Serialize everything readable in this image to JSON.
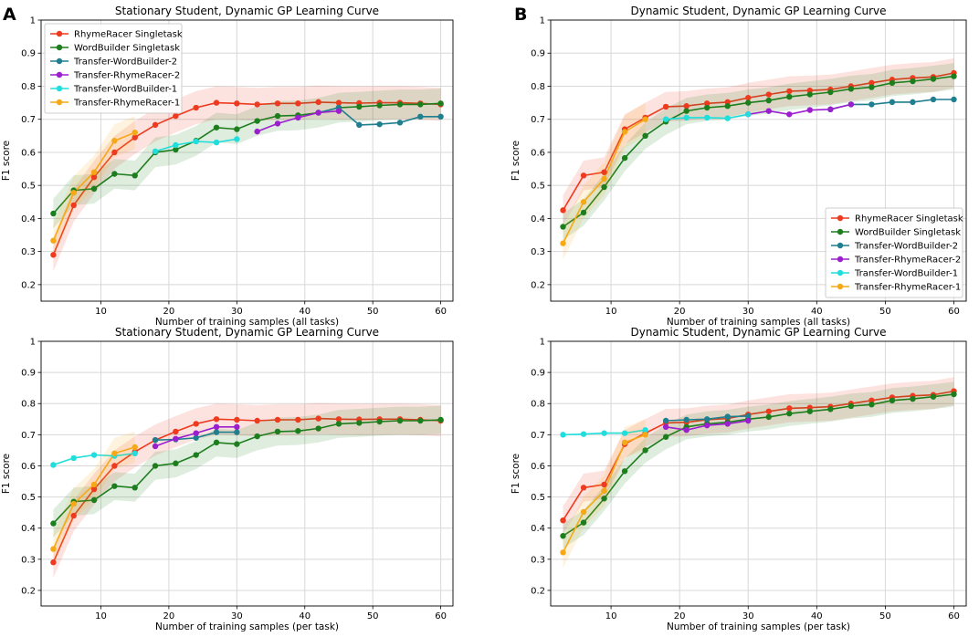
{
  "panel_labels": {
    "a": "A",
    "b": "B"
  },
  "colors": {
    "RhymeRacer Singletask": "#ee3a1f",
    "WordBuilder Singletask": "#1d7e1d",
    "Transfer-WordBuilder-2": "#1f7f8f",
    "Transfer-RhymeRacer-2": "#9b1fcf",
    "Transfer-WordBuilder-1": "#1fdedc",
    "Transfer-RhymeRacer-1": "#f5a917"
  },
  "chart_data": [
    {
      "type": "line",
      "title": "Stationary Student, Dynamic GP Learning Curve",
      "xlabel": "Number of training samples (all tasks)",
      "ylabel": "F1 score",
      "xlim": [
        1.2,
        61.8
      ],
      "ylim": [
        0.15,
        1.0
      ],
      "xticks": [
        10,
        20,
        30,
        40,
        50,
        60
      ],
      "yticks": [
        0.2,
        0.3,
        0.4,
        0.5,
        0.6,
        0.7,
        0.8,
        0.9,
        1.0
      ],
      "legend": "upper-left",
      "series": [
        {
          "name": "RhymeRacer Singletask",
          "x": [
            3,
            6,
            9,
            12,
            15,
            18,
            21,
            24,
            27,
            30,
            33,
            36,
            39,
            42,
            45,
            48,
            51,
            54,
            57,
            60
          ],
          "y": [
            0.29,
            0.44,
            0.525,
            0.6,
            0.645,
            0.683,
            0.71,
            0.735,
            0.75,
            0.748,
            0.745,
            0.748,
            0.748,
            0.752,
            0.75,
            0.749,
            0.75,
            0.75,
            0.748,
            0.745
          ],
          "band": 0.05
        },
        {
          "name": "WordBuilder Singletask",
          "x": [
            3,
            6,
            9,
            12,
            15,
            18,
            21,
            24,
            27,
            30,
            33,
            36,
            39,
            42,
            45,
            48,
            51,
            54,
            57,
            60
          ],
          "y": [
            0.415,
            0.485,
            0.49,
            0.535,
            0.53,
            0.6,
            0.608,
            0.635,
            0.675,
            0.67,
            0.695,
            0.71,
            0.712,
            0.72,
            0.735,
            0.738,
            0.742,
            0.745,
            0.745,
            0.748
          ],
          "band": 0.045
        },
        {
          "name": "Transfer-WordBuilder-2",
          "x": [
            42,
            45,
            48,
            51,
            54,
            57,
            60
          ],
          "y": [
            0.72,
            0.735,
            0.683,
            0.685,
            0.69,
            0.708,
            0.708
          ],
          "band": 0.0
        },
        {
          "name": "Transfer-RhymeRacer-2",
          "x": [
            33,
            36,
            39,
            42,
            45
          ],
          "y": [
            0.663,
            0.687,
            0.705,
            0.72,
            0.725
          ],
          "band": 0.0
        },
        {
          "name": "Transfer-WordBuilder-1",
          "x": [
            18,
            21,
            24,
            27,
            30
          ],
          "y": [
            0.603,
            0.622,
            0.633,
            0.63,
            0.64
          ],
          "band": 0.0
        },
        {
          "name": "Transfer-RhymeRacer-1",
          "x": [
            3,
            6,
            9,
            12,
            15
          ],
          "y": [
            0.333,
            0.478,
            0.54,
            0.635,
            0.66
          ],
          "band": 0.05
        }
      ]
    },
    {
      "type": "line",
      "title": "Dynamic Student, Dynamic GP Learning Curve",
      "xlabel": "Number of training samples (all tasks)",
      "ylabel": "F1 score",
      "xlim": [
        1.2,
        61.8
      ],
      "ylim": [
        0.15,
        1.0
      ],
      "xticks": [
        10,
        20,
        30,
        40,
        50,
        60
      ],
      "yticks": [
        0.2,
        0.3,
        0.4,
        0.5,
        0.6,
        0.7,
        0.8,
        0.9,
        1.0
      ],
      "legend": "lower-right",
      "series": [
        {
          "name": "RhymeRacer Singletask",
          "x": [
            3,
            6,
            9,
            12,
            15,
            18,
            21,
            24,
            27,
            30,
            33,
            36,
            39,
            42,
            45,
            48,
            51,
            54,
            57,
            60
          ],
          "y": [
            0.425,
            0.53,
            0.54,
            0.67,
            0.705,
            0.738,
            0.74,
            0.748,
            0.752,
            0.765,
            0.775,
            0.785,
            0.787,
            0.79,
            0.8,
            0.81,
            0.82,
            0.825,
            0.828,
            0.84
          ],
          "band": 0.045
        },
        {
          "name": "WordBuilder Singletask",
          "x": [
            3,
            6,
            9,
            12,
            15,
            18,
            21,
            24,
            27,
            30,
            33,
            36,
            39,
            42,
            45,
            48,
            51,
            54,
            57,
            60
          ],
          "y": [
            0.375,
            0.418,
            0.495,
            0.583,
            0.65,
            0.693,
            0.725,
            0.735,
            0.74,
            0.75,
            0.757,
            0.768,
            0.775,
            0.782,
            0.792,
            0.797,
            0.81,
            0.815,
            0.822,
            0.83
          ],
          "band": 0.04
        },
        {
          "name": "Transfer-WordBuilder-2",
          "x": [
            42,
            45,
            48,
            51,
            54,
            57,
            60
          ],
          "y": [
            0.73,
            0.745,
            0.745,
            0.752,
            0.752,
            0.76,
            0.76
          ],
          "band": 0.0
        },
        {
          "name": "Transfer-RhymeRacer-2",
          "x": [
            30,
            33,
            36,
            39,
            42,
            45
          ],
          "y": [
            0.715,
            0.725,
            0.715,
            0.728,
            0.73,
            0.745
          ],
          "band": 0.0
        },
        {
          "name": "Transfer-WordBuilder-1",
          "x": [
            18,
            21,
            24,
            27,
            30
          ],
          "y": [
            0.7,
            0.705,
            0.705,
            0.703,
            0.715
          ],
          "band": 0.0
        },
        {
          "name": "Transfer-RhymeRacer-1",
          "x": [
            3,
            6,
            9,
            12,
            15
          ],
          "y": [
            0.325,
            0.45,
            0.52,
            0.662,
            0.7
          ],
          "band": 0.05
        }
      ]
    },
    {
      "type": "line",
      "title": "Stationary Student, Dynamic GP Learning Curve",
      "xlabel": "Number of training samples (per task)",
      "ylabel": "F1 score",
      "xlim": [
        1.2,
        61.8
      ],
      "ylim": [
        0.15,
        1.0
      ],
      "xticks": [
        10,
        20,
        30,
        40,
        50,
        60
      ],
      "yticks": [
        0.2,
        0.3,
        0.4,
        0.5,
        0.6,
        0.7,
        0.8,
        0.9,
        1.0
      ],
      "legend": "none",
      "series": [
        {
          "name": "RhymeRacer Singletask",
          "x": [
            3,
            6,
            9,
            12,
            15,
            18,
            21,
            24,
            27,
            30,
            33,
            36,
            39,
            42,
            45,
            48,
            51,
            54,
            57,
            60
          ],
          "y": [
            0.29,
            0.44,
            0.525,
            0.6,
            0.645,
            0.683,
            0.71,
            0.735,
            0.75,
            0.748,
            0.745,
            0.748,
            0.748,
            0.752,
            0.75,
            0.749,
            0.75,
            0.75,
            0.748,
            0.745
          ],
          "band": 0.05
        },
        {
          "name": "WordBuilder Singletask",
          "x": [
            3,
            6,
            9,
            12,
            15,
            18,
            21,
            24,
            27,
            30,
            33,
            36,
            39,
            42,
            45,
            48,
            51,
            54,
            57,
            60
          ],
          "y": [
            0.415,
            0.485,
            0.49,
            0.535,
            0.53,
            0.6,
            0.608,
            0.635,
            0.675,
            0.67,
            0.695,
            0.71,
            0.712,
            0.72,
            0.735,
            0.738,
            0.742,
            0.745,
            0.745,
            0.748
          ],
          "band": 0.045
        },
        {
          "name": "Transfer-WordBuilder-2",
          "x": [
            18,
            21,
            24,
            27,
            30
          ],
          "y": [
            0.683,
            0.685,
            0.69,
            0.708,
            0.708
          ],
          "band": 0.0
        },
        {
          "name": "Transfer-RhymeRacer-2",
          "x": [
            18,
            21,
            24,
            27,
            30
          ],
          "y": [
            0.663,
            0.687,
            0.705,
            0.725,
            0.725
          ],
          "band": 0.0
        },
        {
          "name": "Transfer-WordBuilder-1",
          "x": [
            3,
            6,
            9,
            12,
            15
          ],
          "y": [
            0.603,
            0.625,
            0.635,
            0.632,
            0.64
          ],
          "band": 0.0
        },
        {
          "name": "Transfer-RhymeRacer-1",
          "x": [
            3,
            6,
            9,
            12,
            15
          ],
          "y": [
            0.333,
            0.478,
            0.54,
            0.64,
            0.66
          ],
          "band": 0.05
        }
      ]
    },
    {
      "type": "line",
      "title": "Dynamic Student, Dynamic GP Learning Curve",
      "xlabel": "Number of training samples (per task)",
      "ylabel": "F1 score",
      "xlim": [
        1.2,
        61.8
      ],
      "ylim": [
        0.15,
        1.0
      ],
      "xticks": [
        10,
        20,
        30,
        40,
        50,
        60
      ],
      "yticks": [
        0.2,
        0.3,
        0.4,
        0.5,
        0.6,
        0.7,
        0.8,
        0.9,
        1.0
      ],
      "legend": "none",
      "series": [
        {
          "name": "RhymeRacer Singletask",
          "x": [
            3,
            6,
            9,
            12,
            15,
            18,
            21,
            24,
            27,
            30,
            33,
            36,
            39,
            42,
            45,
            48,
            51,
            54,
            57,
            60
          ],
          "y": [
            0.425,
            0.53,
            0.54,
            0.67,
            0.705,
            0.738,
            0.74,
            0.748,
            0.752,
            0.765,
            0.775,
            0.785,
            0.787,
            0.79,
            0.8,
            0.81,
            0.82,
            0.825,
            0.828,
            0.84
          ],
          "band": 0.045
        },
        {
          "name": "WordBuilder Singletask",
          "x": [
            3,
            6,
            9,
            12,
            15,
            18,
            21,
            24,
            27,
            30,
            33,
            36,
            39,
            42,
            45,
            48,
            51,
            54,
            57,
            60
          ],
          "y": [
            0.375,
            0.418,
            0.495,
            0.583,
            0.65,
            0.693,
            0.725,
            0.735,
            0.74,
            0.75,
            0.757,
            0.768,
            0.775,
            0.782,
            0.792,
            0.797,
            0.81,
            0.815,
            0.822,
            0.83
          ],
          "band": 0.04
        },
        {
          "name": "Transfer-WordBuilder-2",
          "x": [
            18,
            21,
            24,
            27,
            30
          ],
          "y": [
            0.745,
            0.748,
            0.75,
            0.758,
            0.76
          ],
          "band": 0.0
        },
        {
          "name": "Transfer-RhymeRacer-2",
          "x": [
            18,
            21,
            24,
            27,
            30
          ],
          "y": [
            0.725,
            0.715,
            0.73,
            0.735,
            0.745
          ],
          "band": 0.0
        },
        {
          "name": "Transfer-WordBuilder-1",
          "x": [
            3,
            6,
            9,
            12,
            15
          ],
          "y": [
            0.7,
            0.702,
            0.705,
            0.705,
            0.715
          ],
          "band": 0.0
        },
        {
          "name": "Transfer-RhymeRacer-1",
          "x": [
            3,
            6,
            9,
            12,
            15
          ],
          "y": [
            0.322,
            0.452,
            0.52,
            0.675,
            0.7
          ],
          "band": 0.05
        }
      ]
    }
  ]
}
